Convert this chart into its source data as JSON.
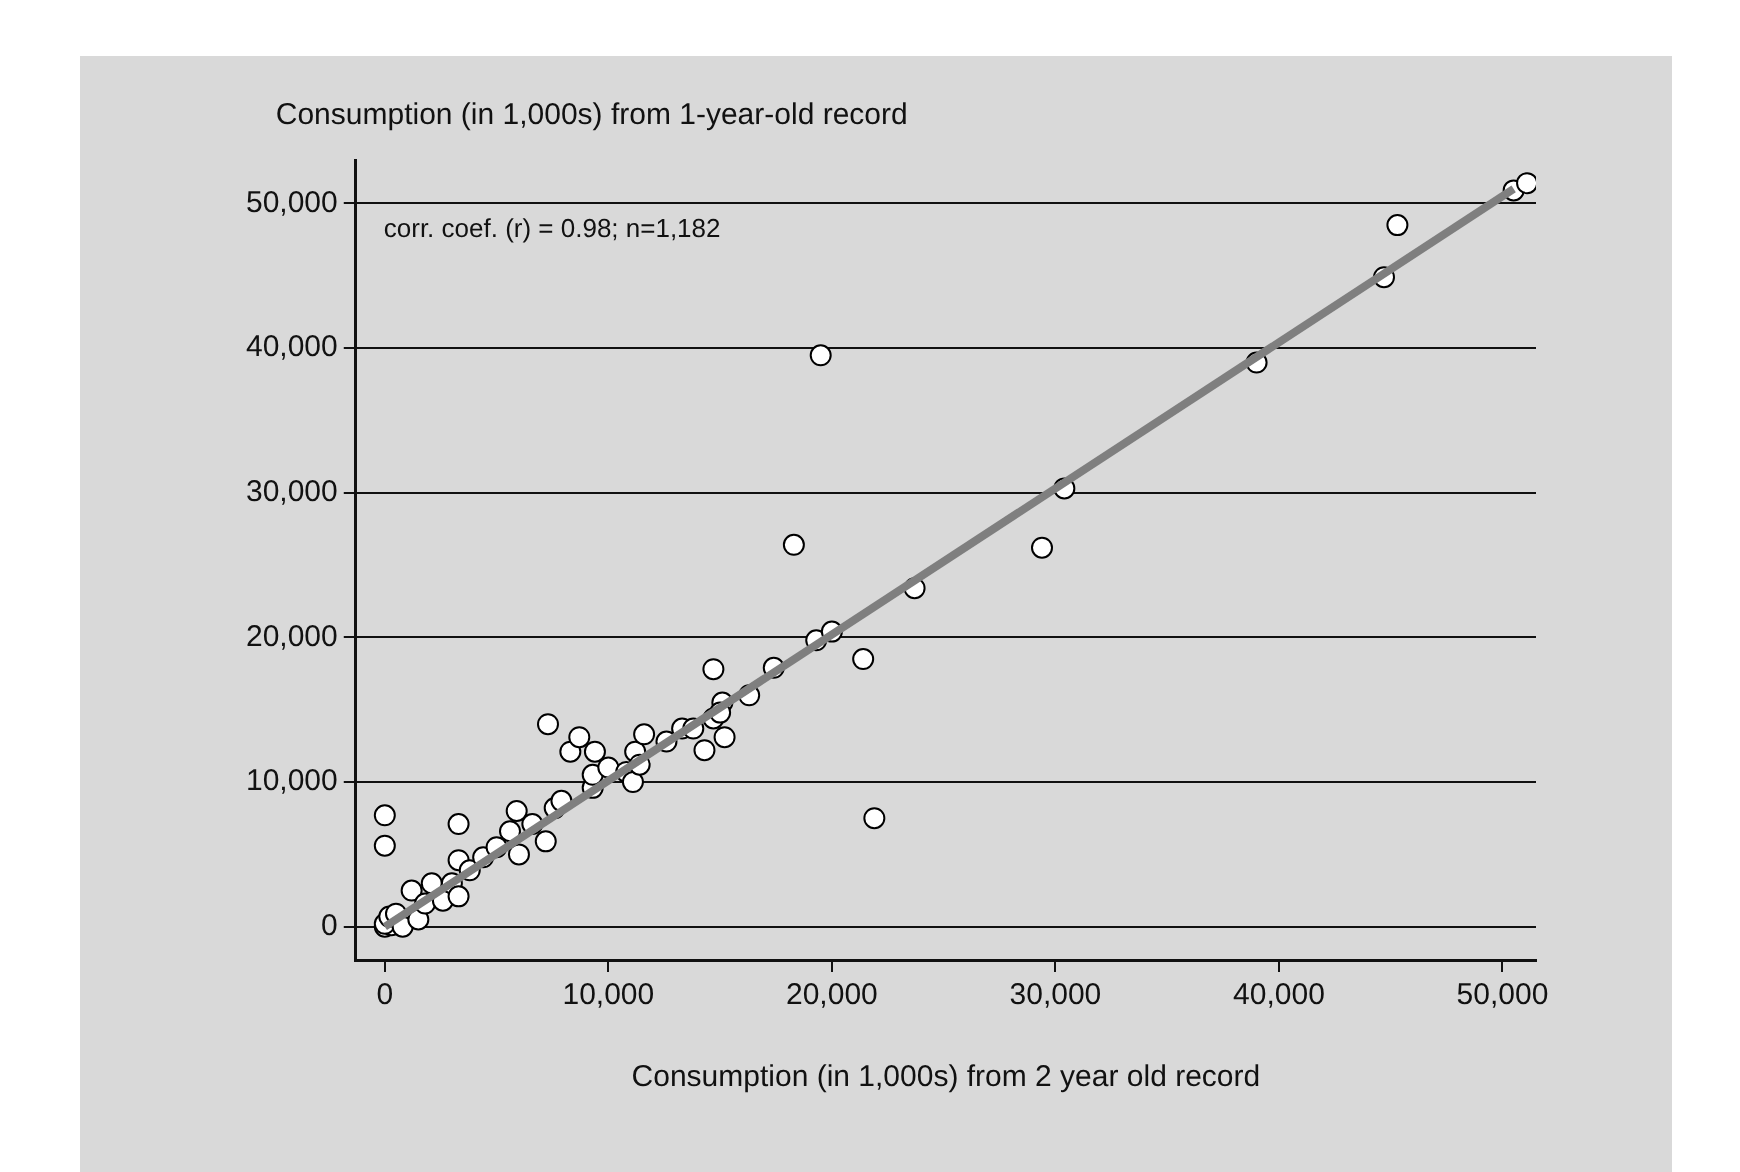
{
  "chart_data": {
    "type": "scatter",
    "xlabel": "Consumption (in 1,000s) from 2 year old record",
    "ylabel": "Consumption (in 1,000s) from 1-year-old record",
    "annotations": [
      "corr. coef. (r) = 0.98; n=1,182"
    ],
    "series": [
      {
        "color": "#ffffff",
        "marker": "circle",
        "x": [
          0,
          300,
          0,
          0,
          0,
          200,
          500,
          800,
          1200,
          1500,
          1800,
          2100,
          2600,
          3000,
          3300,
          3300,
          3300,
          3800,
          4400,
          5000,
          5600,
          5900,
          6000,
          6600,
          7200,
          7300,
          7600,
          7900,
          8300,
          8700,
          9300,
          9400,
          9300,
          10000,
          10800,
          11100,
          11200,
          11600,
          11400,
          12600,
          13300,
          13800,
          14300,
          14700,
          14700,
          15100,
          15200,
          15000,
          16300,
          17400,
          19300,
          20000,
          19500,
          18300,
          21400,
          21900,
          23700,
          29400,
          30400,
          39000,
          44700,
          45300,
          50500,
          51100
        ],
        "values": [
          0,
          100,
          7700,
          5600,
          200,
          700,
          900,
          0,
          2500,
          500,
          1600,
          3000,
          1800,
          3000,
          2100,
          7100,
          4600,
          3900,
          4800,
          5500,
          6600,
          8000,
          5000,
          7100,
          5900,
          14000,
          8200,
          8700,
          12100,
          13100,
          9600,
          12100,
          10500,
          11000,
          10700,
          10000,
          12100,
          13300,
          11200,
          12800,
          13700,
          13700,
          12200,
          14400,
          17800,
          15500,
          13100,
          14800,
          16000,
          17900,
          19800,
          20400,
          39500,
          26400,
          18500,
          7500,
          23400,
          26200,
          30300,
          39000,
          44900,
          48500,
          50900,
          51400
        ]
      },
      {
        "type": "line",
        "color": "#7f7f7f",
        "marker": "none",
        "x": [
          0,
          50500
        ],
        "values": [
          0,
          51000
        ]
      }
    ],
    "xlim": [
      -1300,
      51500
    ],
    "xticks": [
      {
        "value": 0,
        "label": "0"
      },
      {
        "value": 10000,
        "label": "10,000"
      },
      {
        "value": 20000,
        "label": "20,000"
      },
      {
        "value": 30000,
        "label": "30,000"
      },
      {
        "value": 40000,
        "label": "40,000"
      },
      {
        "value": 50000,
        "label": "50,000"
      }
    ],
    "ylim": [
      -2300,
      53000
    ],
    "yticks": [
      {
        "value": 0,
        "label": "0"
      },
      {
        "value": 10000,
        "label": "10,000"
      },
      {
        "value": 20000,
        "label": "20,000"
      },
      {
        "value": 30000,
        "label": "30,000"
      },
      {
        "value": 40000,
        "label": "40,000"
      },
      {
        "value": 50000,
        "label": "50,000"
      }
    ],
    "grid": "y",
    "legend": false
  }
}
